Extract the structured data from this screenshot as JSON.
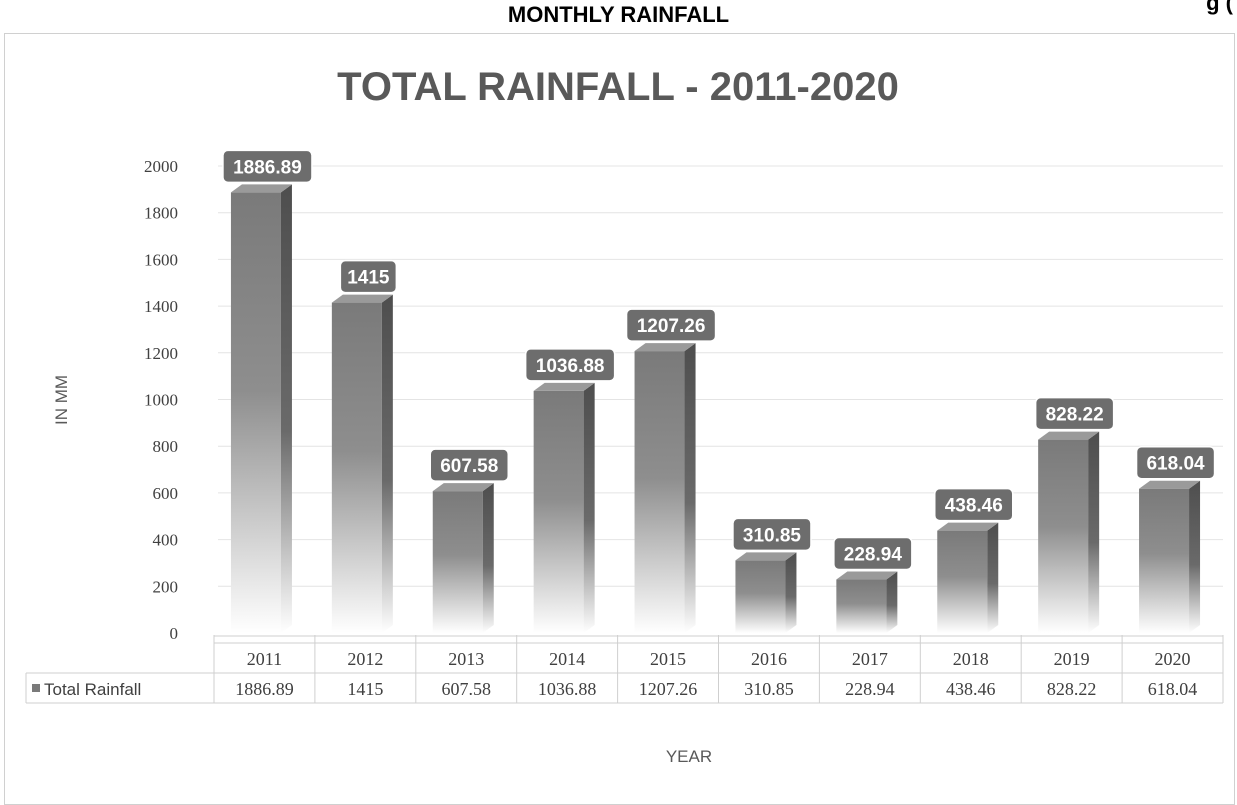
{
  "page": {
    "heading": "MONTHLY RAINFALL",
    "top_right_snippet": "g (",
    "colors": {
      "bar_top": "#7a7a7a",
      "bar_side": "#555555",
      "label_bg": "#6d6d6d",
      "grid": "#e4e4e4"
    }
  },
  "chart_data": {
    "type": "bar",
    "title": "TOTAL RAINFALL - 2011-2020",
    "xlabel": "YEAR",
    "ylabel": "IN MM",
    "ylim": [
      0,
      2000
    ],
    "yticks": [
      "0",
      "200",
      "400",
      "600",
      "800",
      "1000",
      "1200",
      "1400",
      "1600",
      "1800",
      "2000"
    ],
    "categories": [
      "2011",
      "2012",
      "2013",
      "2014",
      "2015",
      "2016",
      "2017",
      "2018",
      "2019",
      "2020"
    ],
    "series": [
      {
        "name": "Total Rainfall",
        "values": [
          1886.89,
          1415,
          607.58,
          1036.88,
          1207.26,
          310.85,
          228.94,
          438.46,
          828.22,
          618.04
        ],
        "labels": [
          "1886.89",
          "1415",
          "607.58",
          "1036.88",
          "1207.26",
          "310.85",
          "228.94",
          "438.46",
          "828.22",
          "618.04"
        ]
      }
    ],
    "grid": true,
    "legend": "data-table",
    "data_table": true
  }
}
